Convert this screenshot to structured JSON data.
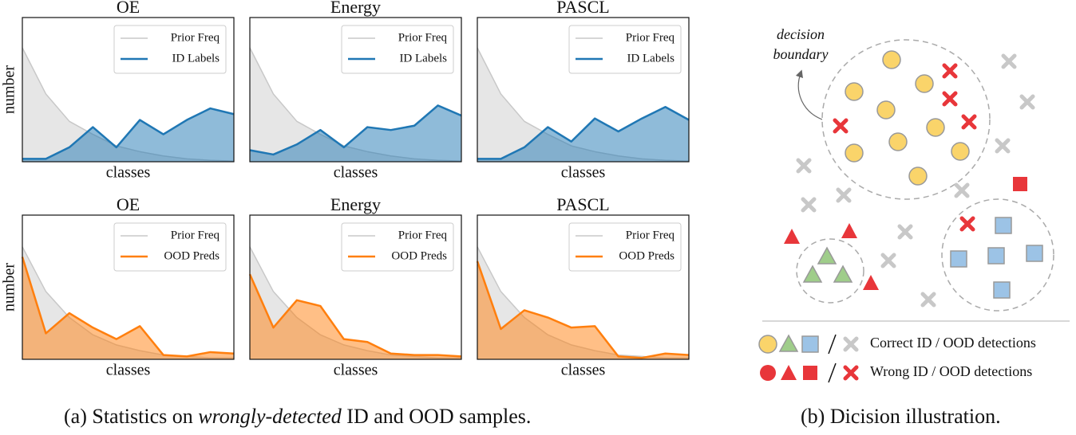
{
  "chart_data": [
    {
      "type": "area",
      "title": "OE",
      "xlabel": "classes",
      "ylabel": "number",
      "ylim": [
        0,
        100
      ],
      "legend": "upper right",
      "series": [
        {
          "name": "Prior Freq",
          "color": "#c8c8c8",
          "values": [
            79,
            47,
            28,
            19,
            11,
            7,
            4,
            2,
            1,
            0.5
          ]
        },
        {
          "name": "ID Labels",
          "color": "#1f77b4",
          "values": [
            2,
            2,
            10,
            24,
            10,
            29,
            19,
            29,
            37,
            33
          ]
        }
      ]
    },
    {
      "type": "area",
      "title": "Energy",
      "xlabel": "classes",
      "ylim": [
        0,
        100
      ],
      "legend": "upper right",
      "series": [
        {
          "name": "Prior Freq",
          "color": "#c8c8c8",
          "values": [
            79,
            47,
            28,
            19,
            11,
            7,
            4,
            2,
            1,
            0.5
          ]
        },
        {
          "name": "ID Labels",
          "color": "#1f77b4",
          "values": [
            8,
            5,
            12,
            22,
            10,
            24,
            22,
            25,
            39,
            32
          ]
        }
      ]
    },
    {
      "type": "area",
      "title": "PASCL",
      "xlabel": "classes",
      "ylim": [
        0,
        100
      ],
      "legend": "upper right",
      "series": [
        {
          "name": "Prior Freq",
          "color": "#c8c8c8",
          "values": [
            79,
            47,
            28,
            19,
            11,
            7,
            4,
            2,
            1,
            0.5
          ]
        },
        {
          "name": "ID Labels",
          "color": "#1f77b4",
          "values": [
            2,
            2,
            10,
            24,
            14,
            30,
            21,
            30,
            38,
            29
          ]
        }
      ]
    },
    {
      "type": "area",
      "title": "OE",
      "xlabel": "classes",
      "ylabel": "number",
      "ylim": [
        0,
        100
      ],
      "legend": "upper right",
      "series": [
        {
          "name": "Prior Freq",
          "color": "#c8c8c8",
          "values": [
            78,
            47,
            29,
            17,
            10,
            6,
            3,
            2,
            1,
            1
          ]
        },
        {
          "name": "OOD Preds",
          "color": "#ff7f0e",
          "values": [
            71,
            18,
            32,
            22,
            14,
            23,
            3,
            2,
            5,
            4
          ]
        }
      ]
    },
    {
      "type": "area",
      "title": "Energy",
      "xlabel": "classes",
      "ylim": [
        0,
        100
      ],
      "legend": "upper right",
      "series": [
        {
          "name": "Prior Freq",
          "color": "#c8c8c8",
          "values": [
            78,
            47,
            29,
            17,
            10,
            6,
            3,
            2,
            1,
            1
          ]
        },
        {
          "name": "OOD Preds",
          "color": "#ff7f0e",
          "values": [
            59,
            22,
            41,
            37,
            14,
            12,
            4,
            3,
            3,
            2
          ]
        }
      ]
    },
    {
      "type": "area",
      "title": "PASCL",
      "xlabel": "classes",
      "ylim": [
        0,
        100
      ],
      "legend": "upper right",
      "series": [
        {
          "name": "Prior Freq",
          "color": "#c8c8c8",
          "values": [
            78,
            47,
            29,
            17,
            10,
            6,
            3,
            2,
            1,
            1
          ]
        },
        {
          "name": "OOD Preds",
          "color": "#ff7f0e",
          "values": [
            68,
            21,
            34,
            29,
            22,
            23,
            2,
            1,
            4,
            3
          ]
        }
      ]
    }
  ],
  "diagram": {
    "boundary_label": [
      "decision",
      "boundary"
    ],
    "legend": [
      "Correct ID / OOD detections",
      "Wrong ID / OOD detections"
    ]
  },
  "captions": {
    "a": [
      "(a) Statistics on ",
      "wrongly-detected",
      " ID and OOD samples."
    ],
    "b": "(b) Dicision illustration."
  }
}
